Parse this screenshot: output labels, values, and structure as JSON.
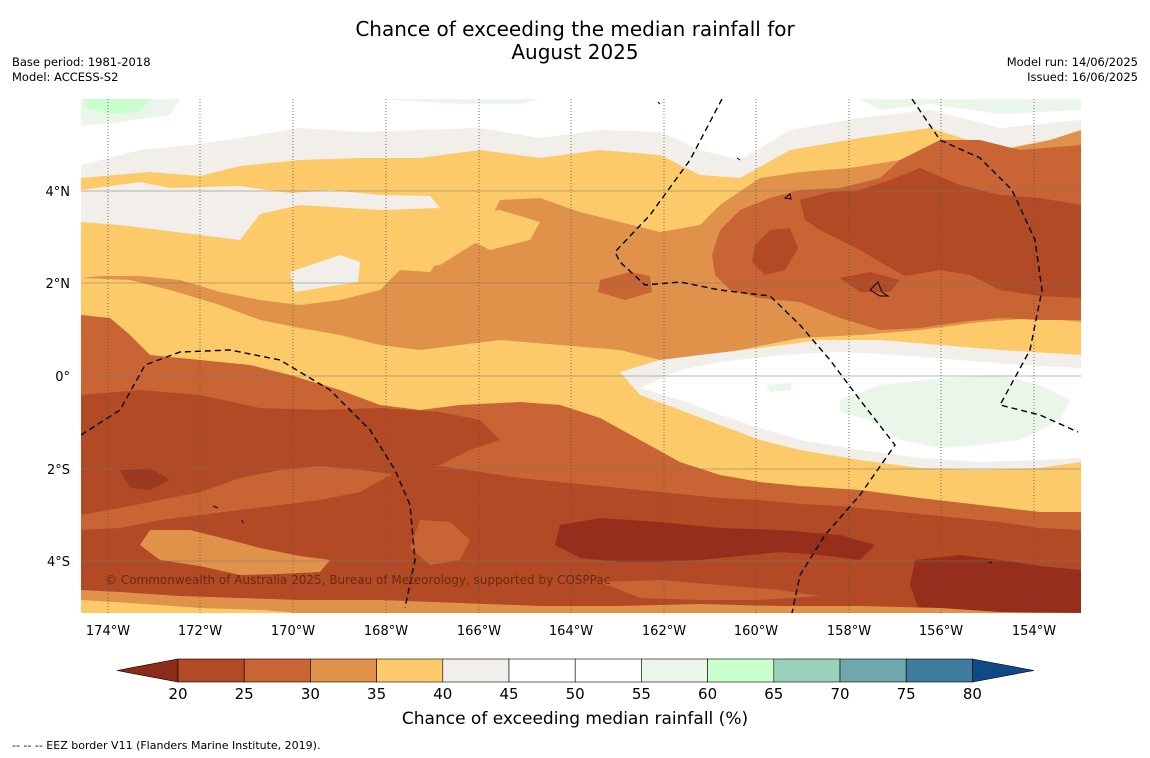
{
  "header": {
    "title_line1": "Chance of exceeding the median rainfall for",
    "title_line2": "August 2025",
    "base_period": "Base period: 1981-2018",
    "model": "Model: ACCESS-S2",
    "model_run": "Model run: 14/06/2025",
    "issued": "Issued: 16/06/2025"
  },
  "map": {
    "lon_ticks": [
      "174°W",
      "172°W",
      "170°W",
      "168°W",
      "166°W",
      "164°W",
      "162°W",
      "160°W",
      "158°W",
      "156°W",
      "154°W"
    ],
    "lat_ticks": [
      "4°N",
      "2°N",
      "0°",
      "2°S",
      "4°S"
    ],
    "copyright": "© Commonwealth of Australia 2025, Bureau of Meteorology, supported by COSPPac",
    "gridlines": true,
    "eez_border": "dashed"
  },
  "colorbar": {
    "label": "Chance of exceeding median rainfall (%)",
    "ticks": [
      "20",
      "25",
      "30",
      "35",
      "40",
      "45",
      "50",
      "55",
      "60",
      "65",
      "70",
      "75",
      "80"
    ],
    "under_color": "#8b2c18",
    "over_color": "#0e4a86",
    "colors": [
      "#b24a25",
      "#c96434",
      "#e0924a",
      "#fdca6a",
      "#f2eee9",
      "#ffffff",
      "#ffffff",
      "#eaf6e9",
      "#c9ffcd",
      "#9ad1bb",
      "#6ea8aa",
      "#3f7b9c"
    ]
  },
  "footer": {
    "eez_note": "--  --  -- EEZ border V11 (Flanders Marine Institute, 2019)."
  }
}
